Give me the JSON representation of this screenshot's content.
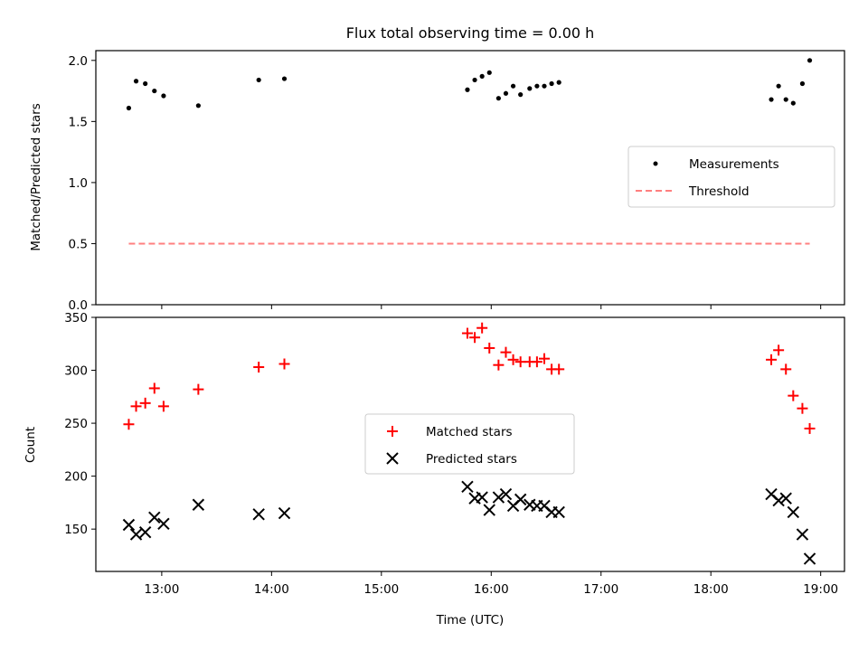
{
  "figure": {
    "title": "Flux total observing time = 0.00 h",
    "xlabel": "Time (UTC)"
  },
  "colors": {
    "measurements": "#000000",
    "threshold": "#ff7f7f",
    "matched": "#ff0000",
    "predicted": "#000000"
  },
  "chart_data": [
    {
      "type": "scatter",
      "panel": "top",
      "ylabel": "Matched/Predicted stars",
      "ylim": [
        0,
        2.08
      ],
      "yticks": [
        0,
        0.5,
        1.0,
        1.5,
        2.0
      ],
      "ytick_labels": [
        "0.0",
        "0.5",
        "1.0",
        "1.5",
        "2.0"
      ],
      "xlim": [
        "12:24",
        "19:13"
      ],
      "xticks": [
        "13:00",
        "14:00",
        "15:00",
        "16:00",
        "17:00",
        "18:00",
        "19:00"
      ],
      "grid": false,
      "legend": {
        "position": "center-right",
        "entries": [
          "Measurements",
          "Threshold"
        ]
      },
      "series": [
        {
          "name": "Measurements",
          "marker": "dot",
          "x": [
            "12:42",
            "12:46",
            "12:51",
            "12:56",
            "13:01",
            "13:20",
            "13:53",
            "14:07",
            "15:47",
            "15:51",
            "15:55",
            "15:59",
            "16:04",
            "16:08",
            "16:12",
            "16:16",
            "16:21",
            "16:25",
            "16:29",
            "16:33",
            "16:37",
            "18:33",
            "18:37",
            "18:41",
            "18:45",
            "18:50",
            "18:54"
          ],
          "y": [
            1.61,
            1.83,
            1.81,
            1.75,
            1.71,
            1.63,
            1.84,
            1.85,
            1.76,
            1.84,
            1.87,
            1.9,
            1.69,
            1.73,
            1.79,
            1.72,
            1.77,
            1.79,
            1.79,
            1.81,
            1.82,
            1.68,
            1.79,
            1.68,
            1.65,
            1.81,
            2.0
          ]
        },
        {
          "name": "Threshold",
          "style": "dashed-line",
          "x": [
            "12:42",
            "18:54"
          ],
          "y": [
            0.5,
            0.5
          ]
        }
      ]
    },
    {
      "type": "scatter",
      "panel": "bottom",
      "ylabel": "Count",
      "ylim": [
        110,
        350
      ],
      "yticks": [
        150,
        200,
        250,
        300,
        350
      ],
      "ytick_labels": [
        "150",
        "200",
        "250",
        "300",
        "350"
      ],
      "xlim": [
        "12:24",
        "19:13"
      ],
      "xticks": [
        "13:00",
        "14:00",
        "15:00",
        "16:00",
        "17:00",
        "18:00",
        "19:00"
      ],
      "xtick_labels": [
        "13:00",
        "14:00",
        "15:00",
        "16:00",
        "17:00",
        "18:00",
        "19:00"
      ],
      "grid": false,
      "legend": {
        "position": "center",
        "entries": [
          "Matched stars",
          "Predicted stars"
        ]
      },
      "series": [
        {
          "name": "Matched stars",
          "marker": "plus",
          "x": [
            "12:42",
            "12:46",
            "12:51",
            "12:56",
            "13:01",
            "13:20",
            "13:53",
            "14:07",
            "15:47",
            "15:51",
            "15:55",
            "15:59",
            "16:04",
            "16:08",
            "16:12",
            "16:16",
            "16:21",
            "16:25",
            "16:29",
            "16:33",
            "16:37",
            "18:33",
            "18:37",
            "18:41",
            "18:45",
            "18:50",
            "18:54"
          ],
          "y": [
            249,
            266,
            269,
            283,
            266,
            282,
            303,
            306,
            335,
            331,
            340,
            321,
            305,
            317,
            310,
            308,
            308,
            308,
            311,
            301,
            301,
            310,
            319,
            301,
            276,
            264,
            245
          ]
        },
        {
          "name": "Predicted stars",
          "marker": "x",
          "x": [
            "12:42",
            "12:46",
            "12:51",
            "12:56",
            "13:01",
            "13:20",
            "13:53",
            "14:07",
            "15:47",
            "15:51",
            "15:55",
            "15:59",
            "16:04",
            "16:08",
            "16:12",
            "16:16",
            "16:21",
            "16:25",
            "16:29",
            "16:33",
            "16:37",
            "18:33",
            "18:37",
            "18:41",
            "18:45",
            "18:50",
            "18:54"
          ],
          "y": [
            154,
            145,
            147,
            161,
            155,
            173,
            164,
            165,
            190,
            179,
            180,
            168,
            180,
            183,
            172,
            178,
            173,
            172,
            172,
            166,
            166,
            183,
            177,
            179,
            166,
            145,
            122
          ]
        }
      ]
    }
  ]
}
